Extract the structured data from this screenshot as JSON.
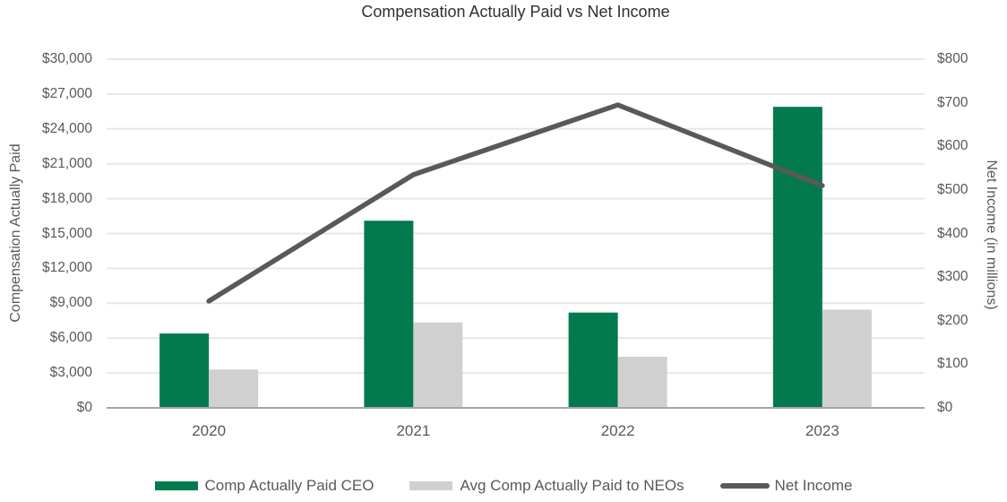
{
  "chart_title": "Compensation Actually Paid vs Net Income",
  "chart_data": {
    "type": "combo",
    "title": "Compensation Actually Paid vs Net Income",
    "categories": [
      "2020",
      "2021",
      "2022",
      "2023"
    ],
    "series": [
      {
        "name": "Comp Actually Paid CEO",
        "type": "bar",
        "axis": "left",
        "color": "#027a4d",
        "values": [
          6400,
          16100,
          8200,
          25900
        ]
      },
      {
        "name": "Avg Comp Actually Paid to NEOs",
        "type": "bar",
        "axis": "left",
        "color": "#d0d0d0",
        "values": [
          3300,
          7350,
          4400,
          8450
        ]
      },
      {
        "name": "Net Income",
        "type": "line",
        "axis": "right",
        "color": "#595959",
        "values": [
          245,
          535,
          695,
          510
        ]
      }
    ],
    "left_axis": {
      "title": "Compensation Actually Paid",
      "min": 0,
      "max": 30000,
      "step": 3000,
      "tick_labels": [
        "$0",
        "$3,000",
        "$6,000",
        "$9,000",
        "$12,000",
        "$15,000",
        "$18,000",
        "$21,000",
        "$24,000",
        "$27,000",
        "$30,000"
      ]
    },
    "right_axis": {
      "title": "Net Income (in millions)",
      "min": 0,
      "max": 800,
      "step": 100,
      "tick_labels": [
        "$0",
        "$100",
        "$200",
        "$300",
        "$400",
        "$500",
        "$600",
        "$700",
        "$800"
      ]
    },
    "grid": true,
    "legend_position": "bottom"
  }
}
